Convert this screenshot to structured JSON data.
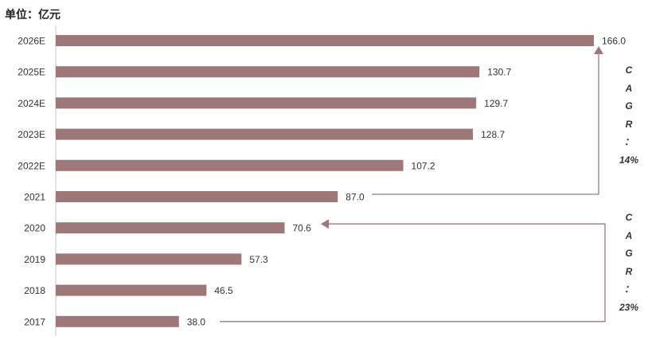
{
  "unit_label": "单位：亿元",
  "chart_data": {
    "type": "bar",
    "orientation": "horizontal",
    "categories": [
      "2026E",
      "2025E",
      "2024E",
      "2023E",
      "2022E",
      "2021",
      "2020",
      "2019",
      "2018",
      "2017"
    ],
    "values": [
      166.0,
      130.7,
      129.7,
      128.7,
      107.2,
      87.0,
      70.6,
      57.3,
      46.5,
      38.0
    ],
    "value_labels": [
      "166.0",
      "130.7",
      "129.7",
      "128.7",
      "107.2",
      "87.0",
      "70.6",
      "57.3",
      "46.5",
      "38.0"
    ],
    "bar_color": "#9e7878",
    "xlim": [
      0,
      166
    ],
    "grid": false,
    "annotations": [
      {
        "text_chars": [
          "C",
          "A",
          "G",
          "R",
          "：",
          "14%"
        ],
        "from": "2021",
        "to": "2026E"
      },
      {
        "text_chars": [
          "C",
          "A",
          "G",
          "R",
          "：",
          "23%"
        ],
        "from": "2017",
        "to": "2020"
      }
    ]
  }
}
